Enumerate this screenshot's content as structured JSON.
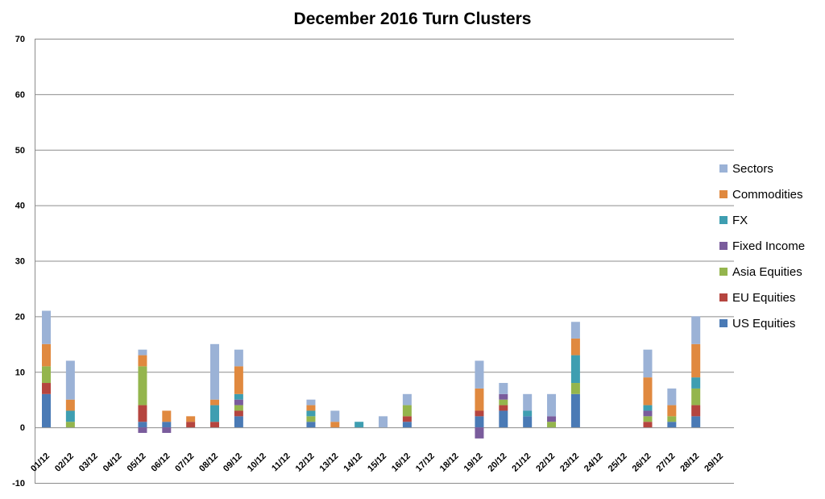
{
  "chart_data": {
    "type": "bar",
    "stacked": true,
    "title": "December 2016 Turn Clusters",
    "xlabel": "",
    "ylabel": "",
    "ylim": [
      -10,
      70
    ],
    "yticks": [
      -10,
      0,
      10,
      20,
      30,
      40,
      50,
      60,
      70
    ],
    "grid": true,
    "legend_position": "right",
    "categories": [
      "01/12",
      "02/12",
      "03/12",
      "04/12",
      "05/12",
      "06/12",
      "07/12",
      "08/12",
      "09/12",
      "10/12",
      "11/12",
      "12/12",
      "13/12",
      "14/12",
      "15/12",
      "16/12",
      "17/12",
      "18/12",
      "19/12",
      "20/12",
      "21/12",
      "22/12",
      "23/12",
      "24/12",
      "25/12",
      "26/12",
      "27/12",
      "28/12",
      "29/12"
    ],
    "series": [
      {
        "name": "US Equities",
        "color": "#4a7ab5",
        "values": [
          6,
          0,
          0,
          0,
          1,
          1,
          0,
          0,
          2,
          0,
          0,
          1,
          0,
          0,
          0,
          1,
          0,
          0,
          2,
          3,
          2,
          0,
          6,
          0,
          0,
          0,
          1,
          2,
          0
        ]
      },
      {
        "name": "EU Equities",
        "color": "#b5453f",
        "values": [
          2,
          0,
          0,
          0,
          3,
          0,
          1,
          1,
          1,
          0,
          0,
          0,
          0,
          0,
          0,
          1,
          0,
          0,
          1,
          1,
          0,
          0,
          0,
          0,
          0,
          1,
          0,
          2,
          0
        ]
      },
      {
        "name": "Asia Equities",
        "color": "#94b54d",
        "values": [
          3,
          1,
          0,
          0,
          7,
          0,
          0,
          0,
          1,
          0,
          0,
          1,
          0,
          0,
          0,
          2,
          0,
          0,
          0,
          1,
          0,
          1,
          2,
          0,
          0,
          1,
          1,
          3,
          0
        ]
      },
      {
        "name": "Fixed Income",
        "color": "#7a5c9c",
        "values": [
          0,
          0,
          0,
          0,
          -1,
          -1,
          0,
          0,
          1,
          0,
          0,
          0,
          0,
          0,
          0,
          0,
          0,
          0,
          -2,
          1,
          0,
          1,
          0,
          0,
          0,
          1,
          0,
          0,
          0
        ]
      },
      {
        "name": "FX",
        "color": "#3e9eb1",
        "values": [
          0,
          2,
          0,
          0,
          0,
          0,
          0,
          3,
          1,
          0,
          0,
          1,
          0,
          1,
          0,
          0,
          0,
          0,
          0,
          0,
          1,
          0,
          5,
          0,
          0,
          1,
          0,
          2,
          0
        ]
      },
      {
        "name": "Commodities",
        "color": "#e0893f",
        "values": [
          4,
          2,
          0,
          0,
          2,
          2,
          1,
          1,
          5,
          0,
          0,
          1,
          1,
          0,
          0,
          0,
          0,
          0,
          4,
          0,
          0,
          0,
          3,
          0,
          0,
          5,
          2,
          6,
          0
        ]
      },
      {
        "name": "Sectors",
        "color": "#9bb2d6",
        "values": [
          6,
          7,
          0,
          0,
          1,
          0,
          0,
          10,
          3,
          0,
          0,
          1,
          2,
          0,
          2,
          2,
          0,
          0,
          5,
          2,
          3,
          4,
          3,
          0,
          0,
          5,
          3,
          5,
          0
        ]
      }
    ]
  }
}
